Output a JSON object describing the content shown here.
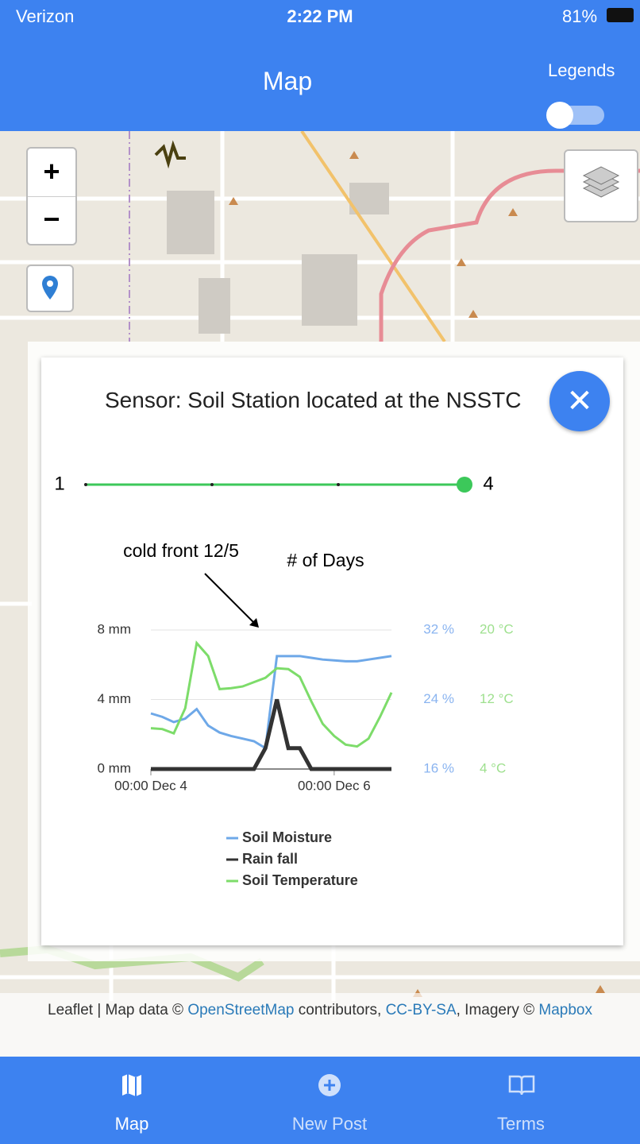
{
  "status_bar": {
    "carrier": "Verizon",
    "time": "2:22 PM",
    "battery": "81%"
  },
  "header": {
    "title": "Map",
    "legends_label": "Legends"
  },
  "map_controls": {
    "zoom_in": "+",
    "zoom_out": "−"
  },
  "popup": {
    "title": "Sensor: Soil Station located at the NSSTC",
    "slider": {
      "min": 1,
      "max": 4,
      "value": 4
    },
    "annotation": "cold front 12/5",
    "chart_data": {
      "type": "line",
      "title": "# of Days",
      "x": [
        "Dec 4 00:00",
        "Dec 4 03:00",
        "Dec 4 06:00",
        "Dec 4 09:00",
        "Dec 4 12:00",
        "Dec 4 15:00",
        "Dec 4 18:00",
        "Dec 4 21:00",
        "Dec 5 00:00",
        "Dec 5 03:00",
        "Dec 5 06:00",
        "Dec 5 09:00",
        "Dec 5 12:00",
        "Dec 5 15:00",
        "Dec 5 18:00",
        "Dec 5 21:00",
        "Dec 6 00:00",
        "Dec 6 03:00",
        "Dec 6 06:00",
        "Dec 6 09:00",
        "Dec 6 12:00",
        "Dec 6 15:00"
      ],
      "xticks": [
        {
          "value": "Dec 4 00:00",
          "label": "00:00 Dec 4"
        },
        {
          "value": "Dec 6 00:00",
          "label": "00:00 Dec 6"
        }
      ],
      "ylim": [
        0,
        8
      ],
      "yticks": [
        {
          "value": 0,
          "label": "0 mm"
        },
        {
          "value": 4,
          "label": "4 mm"
        },
        {
          "value": 8,
          "label": "8 mm"
        }
      ],
      "y2lim": [
        16,
        32
      ],
      "y2ticks": [
        {
          "value": 16,
          "label": "16 %"
        },
        {
          "value": 24,
          "label": "24 %"
        },
        {
          "value": 32,
          "label": "32 %"
        }
      ],
      "y3lim": [
        4,
        20
      ],
      "y3ticks": [
        {
          "value": 4,
          "label": "4 °C"
        },
        {
          "value": 12,
          "label": "12 °C"
        },
        {
          "value": 20,
          "label": "20 °C"
        }
      ],
      "grid": true,
      "series": [
        {
          "name": "Soil Moisture",
          "color": "#6ea8e8",
          "axis": "y2",
          "values": [
            22.4,
            22.0,
            21.4,
            21.8,
            22.9,
            21.0,
            20.2,
            19.8,
            19.5,
            19.2,
            18.4,
            29.0,
            29.0,
            29.0,
            28.8,
            28.6,
            28.5,
            28.4,
            28.4,
            28.6,
            28.8,
            29.0
          ]
        },
        {
          "name": "Rain fall",
          "color": "#333333",
          "axis": "y",
          "values": [
            0,
            0,
            0,
            0,
            0,
            0,
            0,
            0,
            0,
            0,
            1.2,
            4.0,
            1.2,
            1.2,
            0,
            0,
            0,
            0,
            0,
            0,
            0,
            0
          ]
        },
        {
          "name": "Soil Temperature",
          "color": "#7ddc6a",
          "axis": "y3",
          "values": [
            8.7,
            8.6,
            8.1,
            11.0,
            18.5,
            17.0,
            13.2,
            13.3,
            13.5,
            14.0,
            14.5,
            15.6,
            15.5,
            14.6,
            11.8,
            9.2,
            7.8,
            6.8,
            6.6,
            7.5,
            10.0,
            12.8
          ]
        }
      ]
    }
  },
  "attribution": [
    "Leaflet",
    " | Map data © ",
    "OpenStreetMap",
    " contributors, ",
    "CC-BY-SA",
    ", Imagery © ",
    "Mapbox"
  ],
  "tab_bar": {
    "tabs": [
      {
        "label": "Map"
      },
      {
        "label": "New Post"
      },
      {
        "label": "Terms"
      }
    ]
  }
}
